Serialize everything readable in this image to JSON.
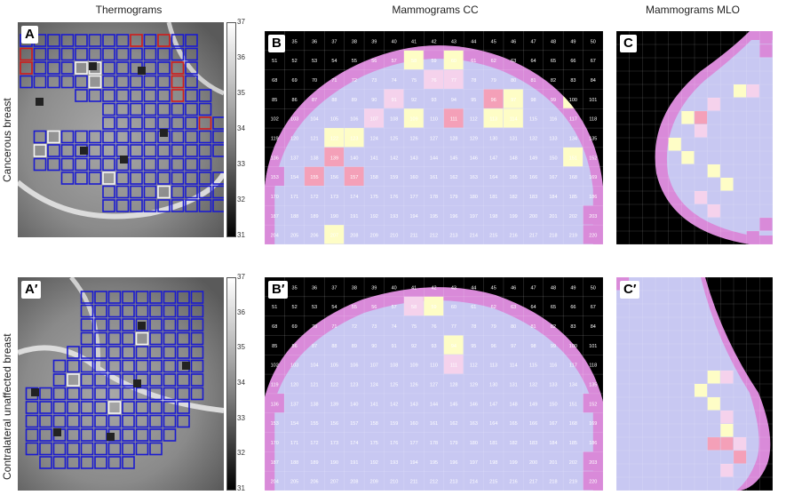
{
  "columns": {
    "thermo": "Thermograms",
    "cc": "Mammograms CC",
    "mlo": "Mammograms MLO"
  },
  "rows": {
    "top": "Cancerous breast",
    "bottom": "Contralateral unaffected breast"
  },
  "panels": {
    "A": "A",
    "B": "B",
    "C": "C",
    "A2": "A′",
    "B2": "B′",
    "C2": "C′"
  },
  "colorbar_ticks": [
    "37",
    "36",
    "35",
    "34",
    "33",
    "32",
    "31"
  ],
  "cc_top_rows": [
    [
      "34",
      "35",
      "36",
      "37",
      "38",
      "39",
      "40",
      "41",
      "42",
      "43",
      "44",
      "45",
      "46",
      "47",
      "48",
      "49",
      "50"
    ],
    [
      "51",
      "52",
      "53",
      "54",
      "55",
      "56",
      "57",
      "58",
      "59",
      "60",
      "61",
      "62",
      "63",
      "64",
      "65",
      "66",
      "67"
    ],
    [
      "68",
      "69",
      "70",
      "71",
      "72",
      "73",
      "74",
      "75",
      "76",
      "77",
      "78",
      "79",
      "80",
      "81",
      "82",
      "83",
      "84"
    ],
    [
      "85",
      "86",
      "87",
      "88",
      "89",
      "90",
      "91",
      "92",
      "93",
      "94",
      "95",
      "96",
      "97",
      "98",
      "99",
      "100",
      "101"
    ],
    [
      "102",
      "103",
      "104",
      "105",
      "106",
      "107",
      "108",
      "109",
      "110",
      "111",
      "112",
      "113",
      "114",
      "115",
      "116",
      "117",
      "118"
    ],
    [
      "119",
      "120",
      "121",
      "122",
      "123",
      "124",
      "125",
      "126",
      "127",
      "128",
      "129",
      "130",
      "131",
      "132",
      "133",
      "134",
      "135"
    ],
    [
      "136",
      "137",
      "138",
      "139",
      "140",
      "141",
      "142",
      "143",
      "144",
      "145",
      "146",
      "147",
      "148",
      "149",
      "150",
      "151",
      "152"
    ],
    [
      "153",
      "154",
      "155",
      "156",
      "157",
      "158",
      "159",
      "160",
      "161",
      "162",
      "163",
      "164",
      "165",
      "166",
      "167",
      "168",
      "169"
    ],
    [
      "170",
      "171",
      "172",
      "173",
      "174",
      "175",
      "176",
      "177",
      "178",
      "179",
      "180",
      "181",
      "182",
      "183",
      "184",
      "185",
      "186"
    ],
    [
      "187",
      "188",
      "189",
      "190",
      "191",
      "192",
      "193",
      "194",
      "195",
      "196",
      "197",
      "198",
      "199",
      "200",
      "201",
      "202",
      "203"
    ],
    [
      "204",
      "205",
      "206",
      "207",
      "208",
      "209",
      "210",
      "211",
      "212",
      "213",
      "214",
      "215",
      "216",
      "217",
      "218",
      "219",
      "220"
    ]
  ],
  "colors": {
    "grid_blue": "#1b1bd0",
    "grid_red": "#d01b1b",
    "grid_white": "#f4f4f4",
    "fill_lavender": "#c8c8f2",
    "fill_pink": "#d98ad9",
    "fill_yellow": "#fefdc6",
    "fill_rose": "#f4a0b8",
    "fill_lightpink": "#f5d2ec",
    "dark": "#000000"
  }
}
